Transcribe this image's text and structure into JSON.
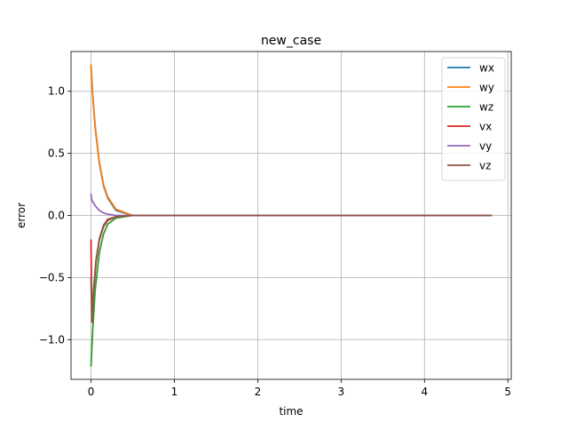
{
  "chart_data": {
    "type": "line",
    "title": "new_case",
    "xlabel": "time",
    "ylabel": "error",
    "xlim": [
      -0.24,
      5.04
    ],
    "ylim": [
      -1.32,
      1.32
    ],
    "xticks": [
      0,
      1,
      2,
      3,
      4,
      5
    ],
    "xtick_labels": [
      "0",
      "1",
      "2",
      "3",
      "4",
      "5"
    ],
    "yticks": [
      -1.0,
      -0.5,
      0.0,
      0.5,
      1.0
    ],
    "ytick_labels": [
      "−1.0",
      "−0.5",
      "0.0",
      "0.5",
      "1.0"
    ],
    "grid": true,
    "legend_position": "top-right",
    "series": [
      {
        "name": "wx",
        "color": "#1f77b4",
        "x": [
          0,
          0.02,
          0.05,
          0.1,
          0.15,
          0.2,
          0.3,
          0.5,
          1,
          2,
          3,
          4,
          4.8
        ],
        "y": [
          1.2,
          0.97,
          0.71,
          0.42,
          0.24,
          0.14,
          0.04,
          0.0,
          0.0,
          0.0,
          0.0,
          0.0,
          0.0
        ]
      },
      {
        "name": "wy",
        "color": "#ff7f0e",
        "x": [
          0,
          0.02,
          0.05,
          0.1,
          0.15,
          0.2,
          0.3,
          0.5,
          1,
          2,
          3,
          4,
          4.8
        ],
        "y": [
          1.21,
          0.98,
          0.72,
          0.43,
          0.25,
          0.15,
          0.05,
          0.0,
          0.0,
          0.0,
          0.0,
          0.0,
          0.0
        ]
      },
      {
        "name": "wz",
        "color": "#2ca02c",
        "x": [
          0,
          0.02,
          0.05,
          0.1,
          0.15,
          0.2,
          0.3,
          0.5,
          1,
          2,
          3,
          4,
          4.8
        ],
        "y": [
          -1.21,
          -0.93,
          -0.6,
          -0.3,
          -0.15,
          -0.07,
          -0.02,
          0.0,
          0.0,
          0.0,
          0.0,
          0.0,
          0.0
        ]
      },
      {
        "name": "vx",
        "color": "#d62728",
        "x": [
          0,
          0.01,
          0.03,
          0.06,
          0.1,
          0.15,
          0.2,
          0.3,
          0.5,
          1,
          2,
          3,
          4,
          4.8
        ],
        "y": [
          -0.2,
          -0.86,
          -0.62,
          -0.38,
          -0.2,
          -0.09,
          -0.04,
          -0.01,
          0.0,
          0.0,
          0.0,
          0.0,
          0.0,
          0.0
        ]
      },
      {
        "name": "vy",
        "color": "#9467bd",
        "x": [
          0,
          0.01,
          0.03,
          0.06,
          0.1,
          0.15,
          0.2,
          0.3,
          0.5,
          1,
          2,
          3,
          4,
          4.8
        ],
        "y": [
          0.17,
          0.12,
          0.1,
          0.07,
          0.04,
          0.02,
          0.01,
          0.0,
          0.0,
          0.0,
          0.0,
          0.0,
          0.0,
          0.0
        ]
      },
      {
        "name": "vz",
        "color": "#8c564b",
        "x": [
          0,
          0.01,
          0.03,
          0.06,
          0.1,
          0.15,
          0.2,
          0.3,
          0.5,
          1,
          2,
          3,
          4,
          4.8
        ],
        "y": [
          -0.5,
          -0.84,
          -0.6,
          -0.36,
          -0.19,
          -0.08,
          -0.03,
          -0.01,
          0.0,
          0.0,
          0.0,
          0.0,
          0.0,
          0.0
        ]
      }
    ]
  }
}
